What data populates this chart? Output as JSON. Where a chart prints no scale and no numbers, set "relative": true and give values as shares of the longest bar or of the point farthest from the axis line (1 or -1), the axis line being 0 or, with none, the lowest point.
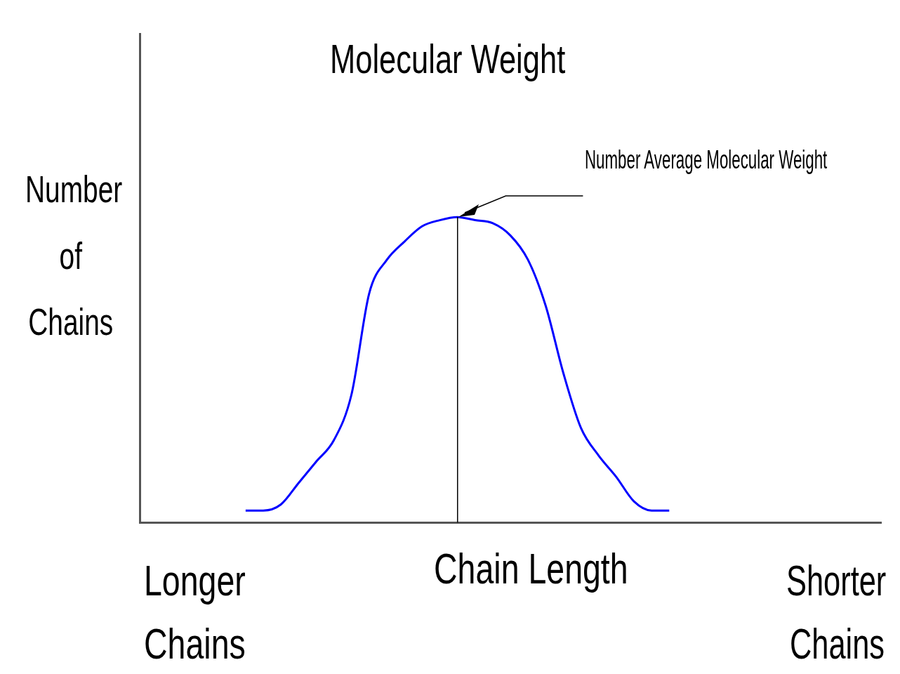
{
  "chart_data": {
    "type": "line",
    "relative": true,
    "title": "Molecular Weight",
    "xlabel": "Chain Length",
    "ylabel": "Number of Chains",
    "grid": false,
    "legend": false,
    "marker": "none",
    "line_style": "solid",
    "categories": [
      null,
      null,
      null,
      null,
      null,
      null,
      null,
      null,
      null,
      null,
      null,
      null,
      null,
      null,
      null,
      null,
      null,
      null,
      null,
      null,
      null,
      null,
      null,
      null,
      null,
      null,
      null,
      null,
      null,
      null,
      null,
      null,
      null,
      null,
      null,
      null,
      null,
      null,
      null,
      null,
      null,
      null,
      null
    ],
    "series": [
      {
        "color": "#0000ff",
        "values": [
          null,
          null,
          null,
          null,
          null,
          null,
          0.04,
          0.04,
          0.06,
          0.13,
          0.2,
          0.27,
          0.42,
          0.75,
          0.86,
          0.92,
          0.97,
          0.99,
          1,
          0.99,
          0.98,
          0.94,
          0.86,
          0.71,
          0.49,
          0.31,
          0.22,
          0.15,
          0.07,
          0.04,
          0.04,
          null,
          null,
          null,
          null,
          null,
          null,
          null,
          null,
          null,
          null,
          null,
          null
        ]
      }
    ],
    "annotations": [
      "Longer Chains",
      "Shorter Chains",
      "Number Average Molecular Weight"
    ]
  }
}
